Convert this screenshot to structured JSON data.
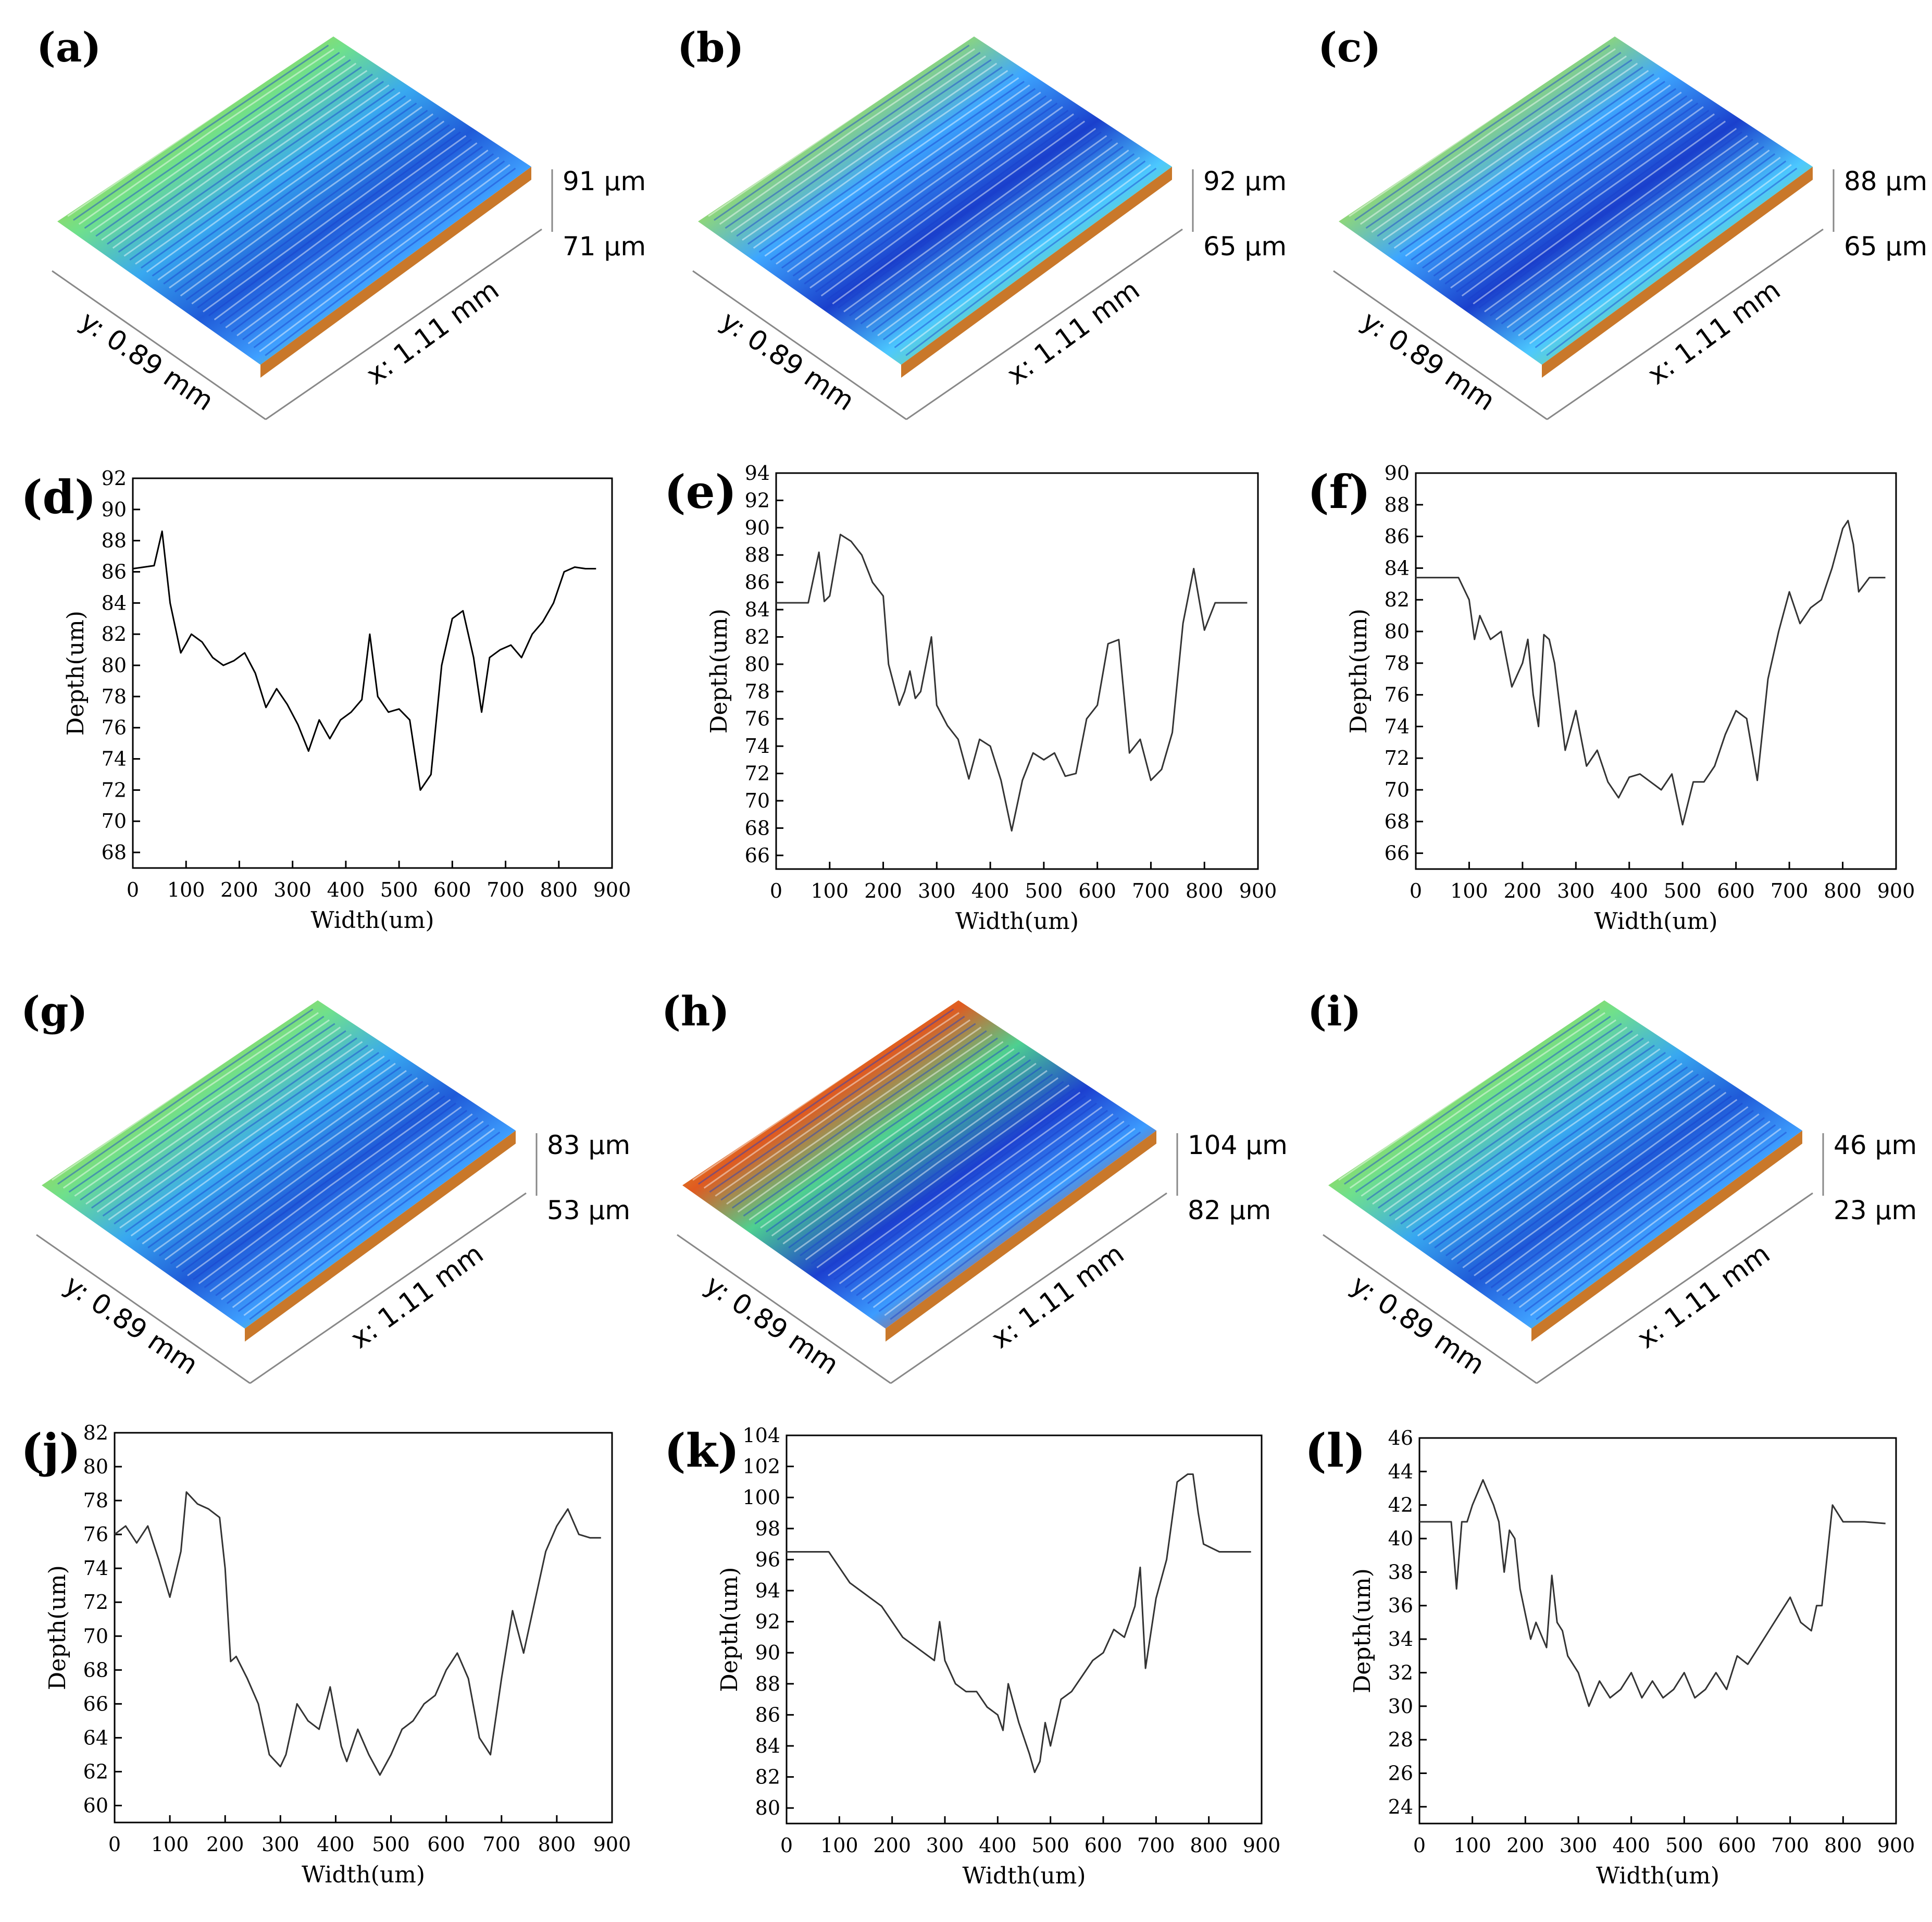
{
  "figure": {
    "surfaces": [
      {
        "panel": "(a)",
        "z_max": "91 µm",
        "z_min": "71 µm",
        "x_label": "x: 1.11 mm",
        "y_label": "y: 0.89 mm"
      },
      {
        "panel": "(b)",
        "z_max": "92 µm",
        "z_min": "65 µm",
        "x_label": "x: 1.11 mm",
        "y_label": "y: 0.89 mm"
      },
      {
        "panel": "(c)",
        "z_max": "88 µm",
        "z_min": "65 µm",
        "x_label": "x: 1.11 mm",
        "y_label": "y: 0.89 mm"
      },
      {
        "panel": "(g)",
        "z_max": "83 µm",
        "z_min": "53 µm",
        "x_label": "x: 1.11 mm",
        "y_label": "y: 0.89 mm"
      },
      {
        "panel": "(h)",
        "z_max": "104 µm",
        "z_min": "82 µm",
        "x_label": "x: 1.11 mm",
        "y_label": "y: 0.89 mm"
      },
      {
        "panel": "(i)",
        "z_max": "46 µm",
        "z_min": "23 µm",
        "x_label": "x: 1.11 mm",
        "y_label": "y: 0.89 mm"
      }
    ]
  },
  "chart_data": [
    {
      "panel": "(d)",
      "type": "line",
      "xlabel": "Width(um)",
      "ylabel": "Depth(um)",
      "xlim": [
        0,
        900
      ],
      "ylim": [
        67,
        92
      ],
      "xticks": [
        0,
        100,
        200,
        300,
        400,
        500,
        600,
        700,
        800,
        900
      ],
      "yticks": [
        68,
        70,
        72,
        74,
        76,
        78,
        80,
        82,
        84,
        86,
        88,
        90,
        92
      ],
      "x": [
        0,
        40,
        55,
        70,
        90,
        110,
        130,
        150,
        170,
        190,
        210,
        230,
        250,
        270,
        290,
        310,
        330,
        350,
        370,
        390,
        410,
        430,
        445,
        460,
        480,
        500,
        520,
        540,
        560,
        580,
        600,
        620,
        640,
        655,
        670,
        690,
        710,
        730,
        750,
        770,
        790,
        810,
        830,
        850,
        870
      ],
      "y": [
        86.2,
        86.4,
        88.6,
        84,
        80.8,
        82,
        81.5,
        80.5,
        80,
        80.3,
        80.8,
        79.5,
        77.3,
        78.5,
        77.5,
        76.2,
        74.5,
        76.5,
        75.3,
        76.5,
        77,
        77.8,
        82,
        78,
        77,
        77.2,
        76.5,
        72,
        73,
        80,
        83,
        83.5,
        80.5,
        77,
        80.5,
        81,
        81.3,
        80.5,
        82,
        82.8,
        84,
        86,
        86.3,
        86.2,
        86.2
      ]
    },
    {
      "panel": "(e)",
      "type": "line",
      "xlabel": "Width(um)",
      "ylabel": "Depth(um)",
      "xlim": [
        0,
        900
      ],
      "ylim": [
        65,
        94
      ],
      "xticks": [
        0,
        100,
        200,
        300,
        400,
        500,
        600,
        700,
        800,
        900
      ],
      "yticks": [
        66,
        68,
        70,
        72,
        74,
        76,
        78,
        80,
        82,
        84,
        86,
        88,
        90,
        92,
        94
      ],
      "x": [
        0,
        30,
        60,
        80,
        90,
        100,
        120,
        140,
        160,
        180,
        200,
        210,
        230,
        240,
        250,
        260,
        270,
        290,
        300,
        320,
        340,
        360,
        380,
        400,
        420,
        440,
        460,
        480,
        500,
        520,
        540,
        560,
        580,
        600,
        620,
        640,
        660,
        680,
        700,
        720,
        740,
        760,
        780,
        800,
        820,
        840,
        860,
        880
      ],
      "y": [
        84.5,
        84.5,
        84.5,
        88.2,
        84.6,
        85,
        89.5,
        89,
        88,
        86,
        85,
        80,
        77,
        78,
        79.5,
        77.5,
        78,
        82,
        77,
        75.5,
        74.5,
        71.6,
        74.5,
        74,
        71.5,
        67.8,
        71.5,
        73.5,
        73,
        73.5,
        71.8,
        72,
        76,
        77,
        81.5,
        81.8,
        73.5,
        74.5,
        71.5,
        72.3,
        75,
        83,
        87,
        82.5,
        84.5,
        84.5,
        84.5,
        84.5
      ]
    },
    {
      "panel": "(f)",
      "type": "line",
      "xlabel": "Width(um)",
      "ylabel": "Depth(um)",
      "xlim": [
        0,
        900
      ],
      "ylim": [
        65,
        90
      ],
      "xticks": [
        0,
        100,
        200,
        300,
        400,
        500,
        600,
        700,
        800,
        900
      ],
      "yticks": [
        66,
        68,
        70,
        72,
        74,
        76,
        78,
        80,
        82,
        84,
        86,
        88,
        90
      ],
      "x": [
        0,
        40,
        80,
        100,
        110,
        120,
        140,
        160,
        180,
        200,
        210,
        220,
        230,
        240,
        250,
        260,
        280,
        300,
        320,
        340,
        360,
        380,
        400,
        420,
        440,
        460,
        480,
        500,
        520,
        540,
        560,
        580,
        600,
        620,
        640,
        660,
        680,
        700,
        720,
        740,
        760,
        780,
        800,
        810,
        820,
        830,
        850,
        880
      ],
      "y": [
        83.4,
        83.4,
        83.4,
        82,
        79.5,
        81,
        79.5,
        80,
        76.5,
        78,
        79.5,
        76,
        74,
        79.8,
        79.5,
        78,
        72.5,
        75,
        71.5,
        72.5,
        70.5,
        69.5,
        70.8,
        71,
        70.5,
        70,
        71,
        67.8,
        70.5,
        70.5,
        71.5,
        73.5,
        75,
        74.5,
        70.6,
        77,
        80,
        82.5,
        80.5,
        81.5,
        82,
        84,
        86.5,
        87,
        85.5,
        82.5,
        83.4,
        83.4
      ]
    },
    {
      "panel": "(j)",
      "type": "line",
      "xlabel": "Width(um)",
      "ylabel": "Depth(um)",
      "xlim": [
        0,
        900
      ],
      "ylim": [
        59,
        82
      ],
      "xticks": [
        0,
        100,
        200,
        300,
        400,
        500,
        600,
        700,
        800,
        900
      ],
      "yticks": [
        60,
        62,
        64,
        66,
        68,
        70,
        72,
        74,
        76,
        78,
        80,
        82
      ],
      "x": [
        0,
        20,
        40,
        60,
        80,
        100,
        120,
        130,
        150,
        170,
        190,
        200,
        210,
        220,
        240,
        260,
        280,
        300,
        310,
        330,
        350,
        370,
        390,
        410,
        420,
        440,
        460,
        480,
        500,
        520,
        540,
        560,
        580,
        600,
        620,
        640,
        660,
        680,
        700,
        720,
        740,
        760,
        780,
        800,
        820,
        840,
        860,
        870,
        880
      ],
      "y": [
        76,
        76.5,
        75.5,
        76.5,
        74.5,
        72.3,
        75,
        78.5,
        77.8,
        77.5,
        77,
        74,
        68.5,
        68.8,
        67.5,
        66,
        63,
        62.3,
        63,
        66,
        65,
        64.5,
        67,
        63.5,
        62.6,
        64.5,
        63,
        61.8,
        63,
        64.5,
        65,
        66,
        66.5,
        68,
        69,
        67.5,
        64,
        63,
        67.5,
        71.5,
        69,
        72,
        75,
        76.5,
        77.5,
        76,
        75.8,
        75.8,
        75.8
      ]
    },
    {
      "panel": "(k)",
      "type": "line",
      "xlabel": "Width(um)",
      "ylabel": "Depth(um)",
      "xlim": [
        0,
        900
      ],
      "ylim": [
        79,
        104
      ],
      "xticks": [
        0,
        100,
        200,
        300,
        400,
        500,
        600,
        700,
        800,
        900
      ],
      "yticks": [
        80,
        82,
        84,
        86,
        88,
        90,
        92,
        94,
        96,
        98,
        100,
        102,
        104
      ],
      "x": [
        0,
        40,
        80,
        100,
        120,
        140,
        160,
        180,
        200,
        220,
        240,
        260,
        280,
        290,
        300,
        320,
        340,
        360,
        380,
        400,
        410,
        420,
        440,
        460,
        470,
        480,
        490,
        500,
        520,
        540,
        560,
        580,
        600,
        620,
        640,
        660,
        670,
        680,
        700,
        720,
        740,
        760,
        770,
        780,
        790,
        820,
        850,
        880
      ],
      "y": [
        96.5,
        96.5,
        96.5,
        95.5,
        94.5,
        94,
        93.5,
        93,
        92,
        91,
        90.5,
        90,
        89.5,
        92,
        89.5,
        88,
        87.5,
        87.5,
        86.5,
        86,
        85,
        88,
        85.5,
        83.5,
        82.3,
        83,
        85.5,
        84,
        87,
        87.5,
        88.5,
        89.5,
        90,
        91.5,
        91,
        93,
        95.5,
        89,
        93.5,
        96,
        101,
        101.5,
        101.5,
        99,
        97,
        96.5,
        96.5,
        96.5
      ]
    },
    {
      "panel": "(l)",
      "type": "line",
      "xlabel": "Width(um)",
      "ylabel": "Depth(um)",
      "xlim": [
        0,
        900
      ],
      "ylim": [
        23,
        46
      ],
      "xticks": [
        0,
        100,
        200,
        300,
        400,
        500,
        600,
        700,
        800,
        900
      ],
      "yticks": [
        24,
        26,
        28,
        30,
        32,
        34,
        36,
        38,
        40,
        42,
        44,
        46
      ],
      "x": [
        0,
        40,
        60,
        70,
        80,
        90,
        100,
        120,
        140,
        150,
        160,
        170,
        180,
        190,
        200,
        210,
        220,
        240,
        250,
        260,
        270,
        280,
        300,
        320,
        340,
        360,
        380,
        400,
        420,
        440,
        460,
        480,
        500,
        520,
        540,
        560,
        580,
        600,
        620,
        640,
        660,
        680,
        700,
        720,
        740,
        750,
        760,
        780,
        800,
        840,
        880
      ],
      "y": [
        41,
        41,
        41,
        37,
        41,
        41,
        42,
        43.5,
        42,
        41,
        38,
        40.5,
        40,
        37,
        35.5,
        34,
        35,
        33.5,
        37.8,
        35,
        34.5,
        33,
        32,
        30,
        31.5,
        30.5,
        31,
        32,
        30.5,
        31.5,
        30.5,
        31,
        32,
        30.5,
        31,
        32,
        31,
        33,
        32.5,
        33.5,
        34.5,
        35.5,
        36.5,
        35,
        34.5,
        36,
        36,
        42,
        41,
        41,
        40.9
      ]
    }
  ]
}
